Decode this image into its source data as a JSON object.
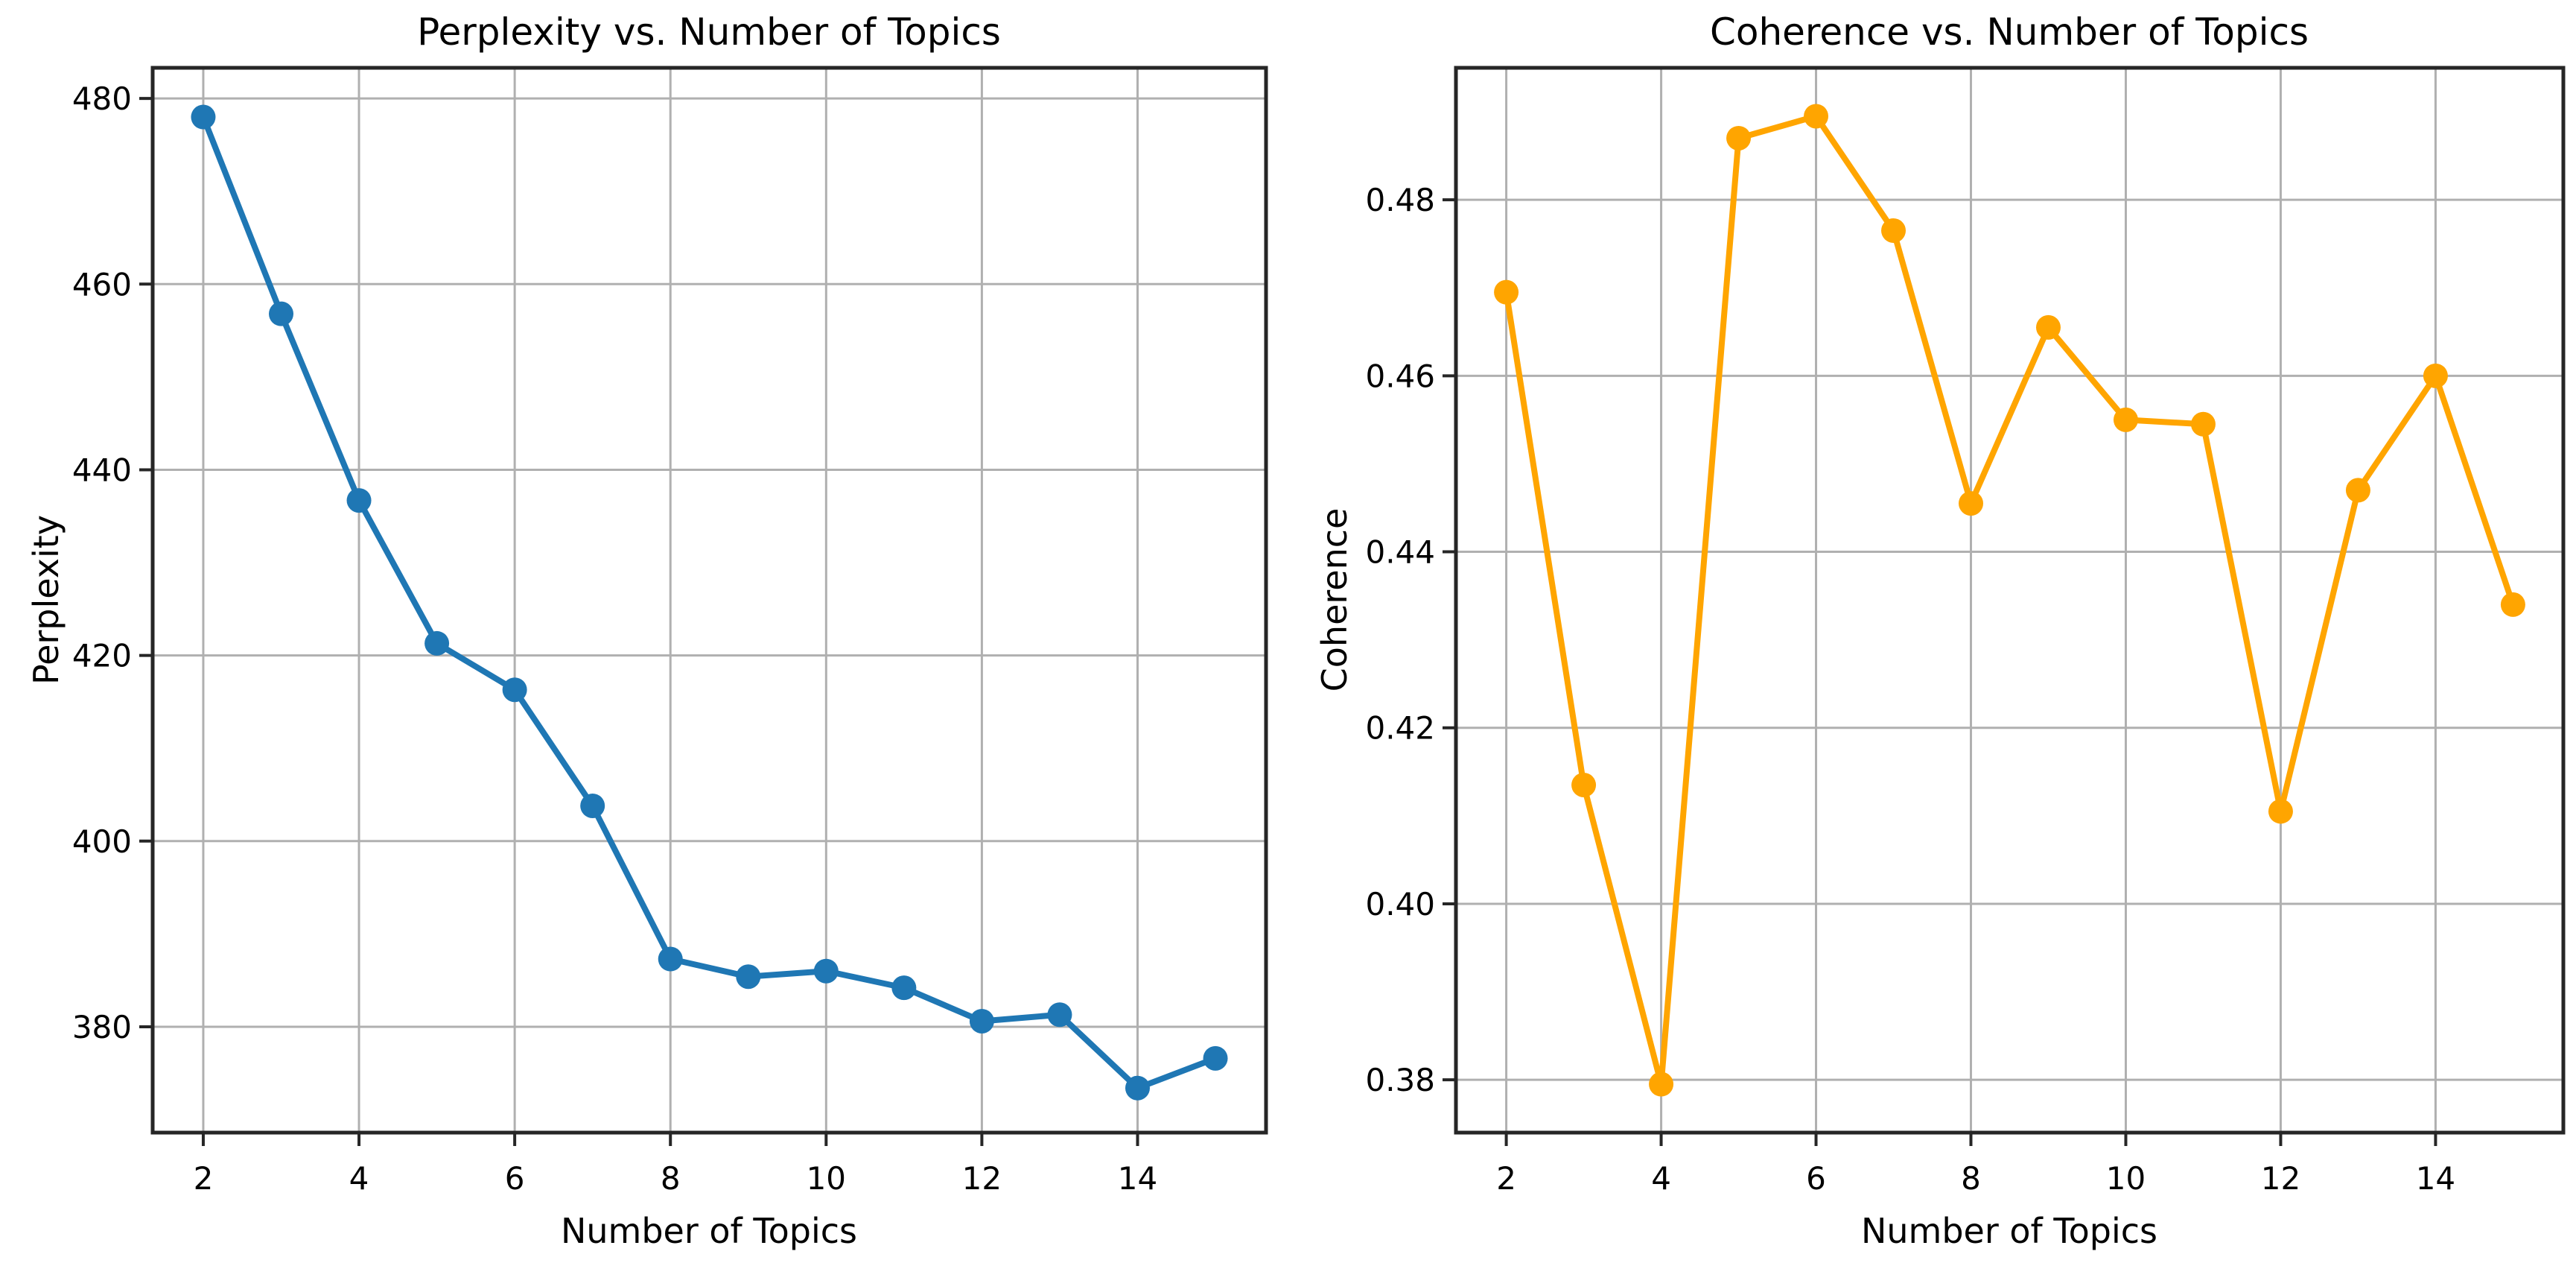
{
  "page": {
    "background": "#ffffff",
    "grid_color": "#b0b0b0",
    "spine_color": "#262626",
    "text_color": "#000000"
  },
  "chart_data": [
    {
      "type": "line",
      "title": "Perplexity vs. Number of Topics",
      "xlabel": "Number of Topics",
      "ylabel": "Perplexity",
      "grid": true,
      "legend": null,
      "xlim": [
        1.35,
        15.65
      ],
      "ylim": [
        368.6,
        483.3
      ],
      "x_ticks": [
        2,
        4,
        6,
        8,
        10,
        12,
        14
      ],
      "x_tick_labels": [
        "2",
        "4",
        "6",
        "8",
        "10",
        "12",
        "14"
      ],
      "y_ticks": [
        380,
        400,
        420,
        440,
        460,
        480
      ],
      "y_tick_labels": [
        "380",
        "400",
        "420",
        "440",
        "460",
        "480"
      ],
      "series": [
        {
          "name": "Perplexity",
          "color": "#1f77b4",
          "marker": "circle",
          "x": [
            2,
            3,
            4,
            5,
            6,
            7,
            8,
            9,
            10,
            11,
            12,
            13,
            14,
            15
          ],
          "y": [
            478.0,
            456.8,
            436.7,
            421.3,
            416.3,
            403.8,
            387.3,
            385.4,
            386.0,
            384.2,
            380.6,
            381.3,
            373.4,
            376.6
          ]
        }
      ]
    },
    {
      "type": "line",
      "title": "Coherence vs. Number of Topics",
      "xlabel": "Number of Topics",
      "ylabel": "Coherence",
      "grid": true,
      "legend": null,
      "xlim": [
        1.35,
        15.65
      ],
      "ylim": [
        0.374,
        0.495
      ],
      "x_ticks": [
        2,
        4,
        6,
        8,
        10,
        12,
        14
      ],
      "x_tick_labels": [
        "2",
        "4",
        "6",
        "8",
        "10",
        "12",
        "14"
      ],
      "y_ticks": [
        0.38,
        0.4,
        0.42,
        0.44,
        0.46,
        0.48
      ],
      "y_tick_labels": [
        "0.38",
        "0.40",
        "0.42",
        "0.44",
        "0.46",
        "0.48"
      ],
      "series": [
        {
          "name": "Coherence",
          "color": "#ffa500",
          "marker": "circle",
          "x": [
            2,
            3,
            4,
            5,
            6,
            7,
            8,
            9,
            10,
            11,
            12,
            13,
            14,
            15
          ],
          "y": [
            0.4695,
            0.4135,
            0.3795,
            0.487,
            0.4895,
            0.4765,
            0.4455,
            0.4655,
            0.455,
            0.4545,
            0.4105,
            0.447,
            0.46,
            0.434
          ]
        }
      ]
    }
  ]
}
